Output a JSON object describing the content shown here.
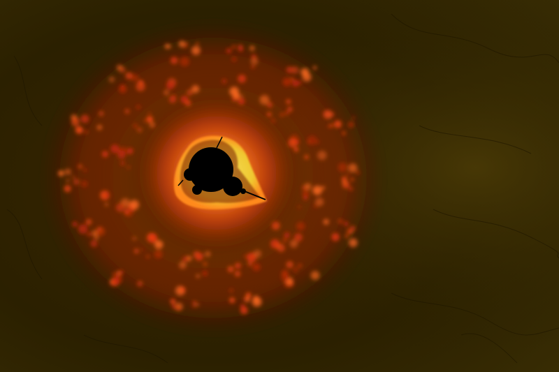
{
  "image": {
    "subject": "mandelbrot-minibrot-fractal",
    "colors": {
      "background_dark": "#231a00",
      "background_olive": "#3a2d00",
      "background_right": "#4a3a05",
      "glow_outer": "#7a1a05",
      "glow_mid": "#d23a10",
      "glow_inner": "#ff6a1a",
      "halo_yellow": "#f2d23a",
      "halo_edge": "#ffb020",
      "set_black": "#000000",
      "filament": "#ff4a1a"
    }
  }
}
